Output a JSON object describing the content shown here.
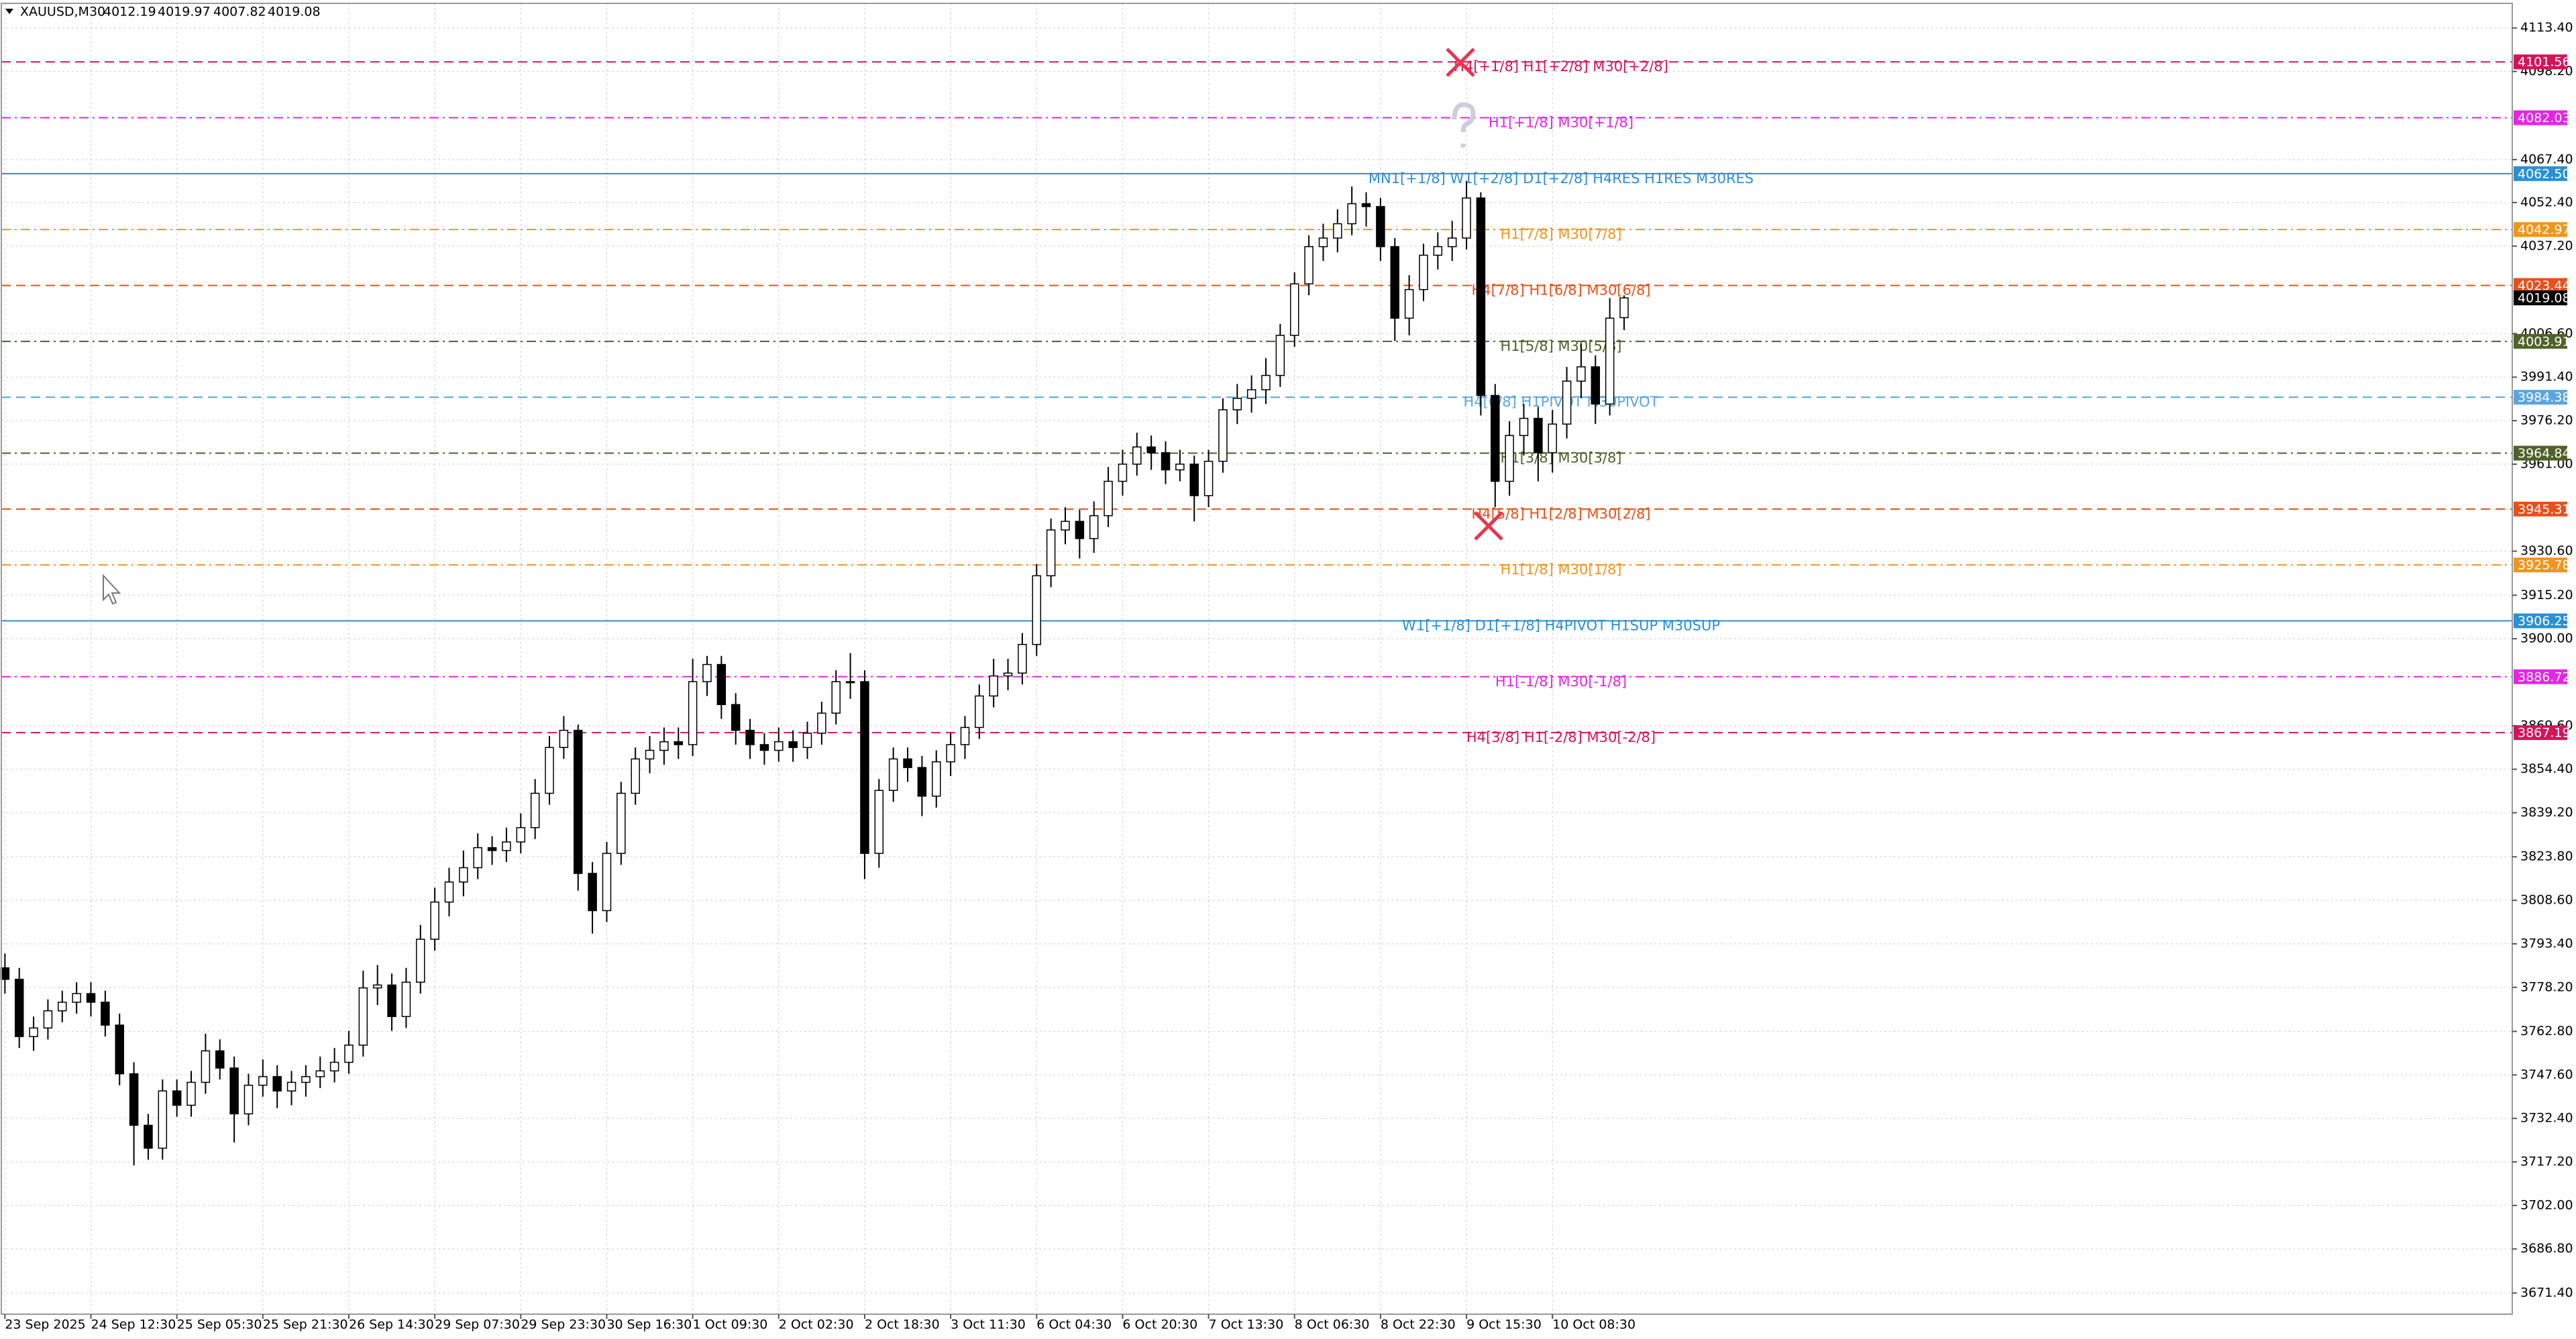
{
  "chart_data": {
    "type": "candlestick",
    "title": "XAUUSD,M30",
    "categories": [
      "23 Sep 2025",
      null,
      null,
      null,
      null,
      null,
      "24 Sep 12:30",
      null,
      null,
      null,
      null,
      null,
      "25 Sep 05:30",
      null,
      null,
      null,
      null,
      null,
      "25 Sep 21:30",
      null,
      null,
      null,
      null,
      null,
      "26 Sep 14:30",
      null,
      null,
      null,
      null,
      null,
      "29 Sep 07:30",
      null,
      null,
      null,
      null,
      null,
      "29 Sep 23:30",
      null,
      null,
      null,
      null,
      null,
      "30 Sep 16:30",
      null,
      null,
      null,
      null,
      null,
      "1 Oct 09:30",
      null,
      null,
      null,
      null,
      null,
      "2 Oct 02:30",
      null,
      null,
      null,
      null,
      null,
      "2 Oct 18:30",
      null,
      null,
      null,
      null,
      null,
      "3 Oct 11:30",
      null,
      null,
      null,
      null,
      null,
      "6 Oct 04:30",
      null,
      null,
      null,
      null,
      null,
      "6 Oct 20:30",
      null,
      null,
      null,
      null,
      null,
      "7 Oct 13:30",
      null,
      null,
      null,
      null,
      null,
      "8 Oct 06:30",
      null,
      null,
      null,
      null,
      null,
      "8 Oct 22:30",
      null,
      null,
      null,
      null,
      null,
      "9 Oct 15:30",
      null,
      null,
      null,
      null,
      null,
      "10 Oct 08:30",
      null,
      null,
      null,
      null,
      null
    ],
    "open": [
      3785,
      3781,
      3761,
      3764,
      3770,
      3773,
      3776,
      3773,
      3765,
      3748,
      3730,
      3722,
      3742,
      3737,
      3745,
      3756,
      3750,
      3734,
      3744,
      3747,
      3742,
      3745,
      3747,
      3749,
      3752,
      3758,
      3778,
      3779,
      3768,
      3780,
      3795,
      3808,
      3815,
      3820,
      3827,
      3826,
      3829,
      3834,
      3846,
      3862,
      3868,
      3818,
      3805,
      3825,
      3846,
      3858,
      3861,
      3864,
      3863,
      3885,
      3891,
      3877,
      3868,
      3863,
      3861,
      3864,
      3862,
      3867,
      3874,
      3885,
      3885,
      3825,
      3847,
      3858,
      3855,
      3845,
      3857,
      3863,
      3869,
      3880,
      3887,
      3888,
      3898,
      3922,
      3938,
      3941,
      3935,
      3943,
      3955,
      3961,
      3967,
      3965,
      3959,
      3961,
      3950,
      3962,
      3980,
      3984,
      3987,
      3992,
      4006,
      4024,
      4037,
      4040,
      4045,
      4052,
      4051,
      4037,
      4012,
      4022,
      4034,
      4037,
      4040,
      4054,
      3985,
      3955,
      3971,
      3977,
      3965,
      3975,
      3990,
      3995,
      3982,
      4012.19
    ],
    "high": [
      3790,
      3785,
      3768,
      3774,
      3777,
      3780,
      3780,
      3777,
      3769,
      3752,
      3734,
      3746,
      3746,
      3749,
      3762,
      3760,
      3754,
      3748,
      3753,
      3751,
      3749,
      3751,
      3754,
      3757,
      3763,
      3784,
      3786,
      3783,
      3785,
      3800,
      3813,
      3820,
      3826,
      3832,
      3831,
      3834,
      3839,
      3851,
      3866,
      3873,
      3870,
      3822,
      3829,
      3850,
      3862,
      3866,
      3869,
      3869,
      3893,
      3894,
      3894,
      3881,
      3872,
      3867,
      3869,
      3868,
      3871,
      3878,
      3889,
      3895,
      3889,
      3851,
      3862,
      3862,
      3859,
      3861,
      3867,
      3873,
      3884,
      3893,
      3893,
      3902,
      3926,
      3942,
      3946,
      3945,
      3948,
      3960,
      3966,
      3972,
      3971,
      3969,
      3966,
      3964,
      3966,
      3984,
      3989,
      3992,
      3998,
      4010,
      4028,
      4041,
      4045,
      4050,
      4058,
      4056,
      4054,
      4040,
      4027,
      4038,
      4042,
      4046,
      4060,
      4056,
      3989,
      3976,
      3982,
      3981,
      3980,
      3995,
      4003,
      3999,
      4019,
      4019.97
    ],
    "low": [
      3776,
      3757,
      3756,
      3760,
      3766,
      3769,
      3768,
      3761,
      3744,
      3716,
      3718,
      3718,
      3733,
      3733,
      3741,
      3746,
      3724,
      3730,
      3740,
      3736,
      3737,
      3740,
      3743,
      3745,
      3748,
      3754,
      3772,
      3763,
      3764,
      3776,
      3791,
      3803,
      3810,
      3816,
      3821,
      3822,
      3825,
      3830,
      3842,
      3858,
      3812,
      3797,
      3801,
      3821,
      3842,
      3853,
      3856,
      3858,
      3859,
      3880,
      3872,
      3863,
      3858,
      3856,
      3857,
      3857,
      3858,
      3863,
      3870,
      3879,
      3816,
      3820,
      3843,
      3850,
      3838,
      3841,
      3852,
      3858,
      3865,
      3876,
      3882,
      3884,
      3894,
      3918,
      3933,
      3928,
      3930,
      3939,
      3950,
      3957,
      3959,
      3954,
      3955,
      3941,
      3946,
      3958,
      3975,
      3979,
      3982,
      3988,
      4002,
      4020,
      4032,
      4035,
      4041,
      4044,
      4032,
      4004,
      4006,
      4018,
      4029,
      4032,
      4036,
      3978,
      3946,
      3950,
      3964,
      3955,
      3958,
      3970,
      3984,
      3975,
      3978,
      4007.82
    ],
    "close": [
      3781,
      3761,
      3764,
      3770,
      3773,
      3776,
      3773,
      3765,
      3748,
      3730,
      3722,
      3742,
      3737,
      3745,
      3756,
      3750,
      3734,
      3744,
      3747,
      3742,
      3745,
      3747,
      3749,
      3752,
      3758,
      3778,
      3779,
      3768,
      3780,
      3795,
      3808,
      3815,
      3820,
      3827,
      3826,
      3829,
      3834,
      3846,
      3862,
      3868,
      3818,
      3805,
      3825,
      3846,
      3858,
      3861,
      3864,
      3863,
      3885,
      3891,
      3877,
      3868,
      3863,
      3861,
      3864,
      3862,
      3867,
      3874,
      3885,
      3885,
      3825,
      3847,
      3858,
      3855,
      3845,
      3857,
      3863,
      3869,
      3880,
      3887,
      3888,
      3898,
      3922,
      3938,
      3941,
      3935,
      3943,
      3955,
      3961,
      3967,
      3965,
      3959,
      3961,
      3950,
      3962,
      3980,
      3984,
      3987,
      3992,
      4006,
      4024,
      4037,
      4040,
      4045,
      4052,
      4051,
      4037,
      4012,
      4022,
      4034,
      4037,
      4040,
      4054,
      3985,
      3955,
      3971,
      3977,
      3965,
      3975,
      3990,
      3995,
      3982,
      4012,
      4019.08
    ],
    "up_color": "#ffffff",
    "down_color": "#000000",
    "wick_color": "#000000",
    "ylim": [
      3664,
      4122
    ],
    "yticks": [
      {
        "value": 4113.4,
        "label": "4113.40"
      },
      {
        "value": 4098.2,
        "label": "4098.20"
      },
      {
        "value": 4067.4,
        "label": "4067.40"
      },
      {
        "value": 4052.4,
        "label": "4052.40"
      },
      {
        "value": 4037.2,
        "label": "4037.20"
      },
      {
        "value": 4006.6,
        "label": "4006.60"
      },
      {
        "value": 3991.4,
        "label": "3991.40"
      },
      {
        "value": 3976.2,
        "label": "3976.20"
      },
      {
        "value": 3961,
        "label": "3961.00"
      },
      {
        "value": 3930.6,
        "label": "3930.60"
      },
      {
        "value": 3915.2,
        "label": "3915.20"
      },
      {
        "value": 3900,
        "label": "3900.00"
      },
      {
        "value": 3869.6,
        "label": "3869.60"
      },
      {
        "value": 3854.4,
        "label": "3854.40"
      },
      {
        "value": 3839.2,
        "label": "3839.20"
      },
      {
        "value": 3823.8,
        "label": "3823.80"
      },
      {
        "value": 3808.6,
        "label": "3808.60"
      },
      {
        "value": 3793.4,
        "label": "3793.40"
      },
      {
        "value": 3778.2,
        "label": "3778.20"
      },
      {
        "value": 3762.8,
        "label": "3762.80"
      },
      {
        "value": 3747.6,
        "label": "3747.60"
      },
      {
        "value": 3732.4,
        "label": "3732.40"
      },
      {
        "value": 3717.2,
        "label": "3717.20"
      },
      {
        "value": 3702,
        "label": "3702.00"
      },
      {
        "value": 3686.8,
        "label": "3686.80"
      },
      {
        "value": 3671.4,
        "label": "3671.40"
      }
    ],
    "grid": true,
    "levels": [
      {
        "value": 4101.56,
        "text": "H4[+1/8] H1[+2/8] M30[+2/8]",
        "color": "#d4145a",
        "style": "dashed"
      },
      {
        "value": 4082.03,
        "text": "H1[+1/8] M30[+1/8]",
        "color": "#e624e6",
        "style": "dashdot"
      },
      {
        "value": 4062.5,
        "value_label": "4062.50",
        "text": "MN1[+1/8] W1[+2/8] D1[+2/8] H4RES H1RES M30RES",
        "color": "#2b8fd6",
        "style": "solid"
      },
      {
        "value": 4042.97,
        "text": "H1[7/8] M30[7/8]",
        "color": "#f0961e",
        "style": "dashdot"
      },
      {
        "value": 4023.44,
        "text": "H4[7/8] H1[6/8] M30[6/8]",
        "color": "#e8501a",
        "style": "dashed"
      },
      {
        "value": 4003.91,
        "text": "H1[5/8] M30[5/8]",
        "color": "#4f6228",
        "style": "dashdot"
      },
      {
        "value": 3984.38,
        "text": "H4[6/8] H1PIVOT M30PIVOT",
        "color": "#5aa6e0",
        "style": "dashed"
      },
      {
        "value": 3964.84,
        "text": "H1[3/8] M30[3/8]",
        "color": "#4f6228",
        "style": "dashdot"
      },
      {
        "value": 3945.31,
        "text": "H4[5/8] H1[2/8] M30[2/8]",
        "color": "#e8501a",
        "style": "dashed"
      },
      {
        "value": 3925.78,
        "text": "H1[1/8] M30[1/8]",
        "color": "#f0961e",
        "style": "dashdot"
      },
      {
        "value": 3906.25,
        "text": "W1[+1/8] D1[+1/8] H4PIVOT H1SUP M30SUP",
        "color": "#2b8fd6",
        "style": "solid"
      },
      {
        "value": 3886.72,
        "text": "H1[-1/8] M30[-1/8]",
        "color": "#e624e6",
        "style": "dashdot"
      },
      {
        "value": 3867.19,
        "text": "H4[3/8] H1[-2/8] M30[-2/8]",
        "color": "#d4145a",
        "style": "dashed"
      }
    ]
  }
}
